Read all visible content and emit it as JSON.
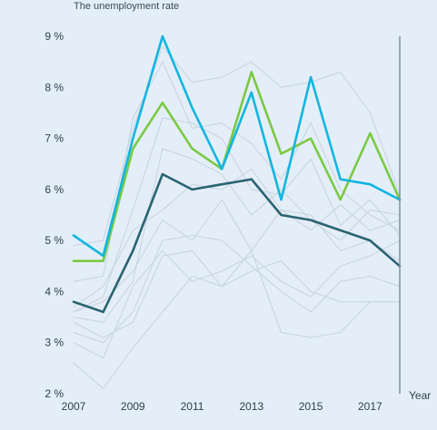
{
  "chart_data": {
    "type": "line",
    "title": "The unemployment rate",
    "xlabel": "Year",
    "ylabel": "",
    "x": [
      2007,
      2008,
      2009,
      2010,
      2011,
      2012,
      2013,
      2014,
      2015,
      2016,
      2017,
      2018
    ],
    "x_tick_labels": [
      "2007",
      "2009",
      "2011",
      "2013",
      "2015",
      "2017"
    ],
    "xlim": [
      2007,
      2018
    ],
    "y_tick_labels": [
      "2 %",
      "3 %",
      "4 %",
      "5 %",
      "6 %",
      "7 %",
      "8 %",
      "9 %"
    ],
    "ylim": [
      2,
      9
    ],
    "y_unit": "%",
    "grid": false,
    "series": [
      {
        "values": [
          5.1,
          4.7,
          7.0,
          9.0,
          7.6,
          6.4,
          7.9,
          5.8,
          8.2,
          6.2,
          6.1,
          5.8
        ],
        "color": "#12b5e0",
        "highlight": true
      },
      {
        "values": [
          4.6,
          4.6,
          6.8,
          7.7,
          6.8,
          6.4,
          8.3,
          6.7,
          7.0,
          5.8,
          7.1,
          5.8
        ],
        "color": "#7ac943",
        "highlight": true
      },
      {
        "values": [
          3.8,
          3.6,
          4.8,
          6.3,
          6.0,
          6.1,
          6.2,
          5.5,
          5.4,
          5.2,
          5.0,
          4.5
        ],
        "color": "#2a6371",
        "highlight": true
      },
      {
        "values": [
          4.9,
          5.0,
          7.2,
          8.8,
          8.1,
          8.2,
          8.5,
          8.0,
          8.1,
          8.3,
          7.5,
          5.9
        ],
        "color": "#c8d5e1"
      },
      {
        "values": [
          4.2,
          4.3,
          7.4,
          8.5,
          7.2,
          7.3,
          6.9,
          6.2,
          7.3,
          6.0,
          5.5,
          5.2
        ],
        "color": "#c8d5e1"
      },
      {
        "values": [
          3.6,
          3.9,
          5.6,
          7.4,
          7.3,
          7.0,
          6.0,
          5.9,
          6.6,
          5.3,
          5.8,
          5.1
        ],
        "color": "#c8d5e1"
      },
      {
        "values": [
          3.5,
          3.4,
          4.2,
          6.8,
          6.6,
          6.3,
          5.5,
          6.0,
          5.4,
          5.0,
          5.6,
          5.5
        ],
        "color": "#c8d5e1"
      },
      {
        "values": [
          3.2,
          3.0,
          3.6,
          5.0,
          5.1,
          5.0,
          4.5,
          4.0,
          3.6,
          4.2,
          4.3,
          4.1
        ],
        "color": "#c8d5e1"
      },
      {
        "values": [
          3.0,
          2.7,
          4.1,
          4.8,
          4.2,
          4.4,
          4.7,
          4.2,
          3.9,
          4.5,
          4.7,
          5.0
        ],
        "color": "#c8d5e1"
      },
      {
        "values": [
          2.6,
          2.1,
          2.9,
          3.6,
          4.3,
          4.1,
          4.4,
          4.6,
          4.0,
          3.8,
          3.8,
          3.8
        ],
        "color": "#c8d5e1"
      },
      {
        "values": [
          3.4,
          3.1,
          3.4,
          4.7,
          4.8,
          4.1,
          4.8,
          5.6,
          5.5,
          4.8,
          5.0,
          4.6
        ],
        "color": "#c8d5e1"
      },
      {
        "values": [
          3.6,
          3.8,
          4.4,
          5.4,
          5.0,
          5.8,
          4.8,
          3.2,
          3.1,
          3.2,
          3.8,
          3.8
        ],
        "color": "#c8d5e1"
      },
      {
        "values": [
          3.7,
          4.1,
          5.2,
          5.6,
          6.1,
          6.0,
          6.4,
          5.6,
          5.2,
          5.7,
          5.2,
          5.4
        ],
        "color": "#c8d5e1"
      }
    ]
  }
}
